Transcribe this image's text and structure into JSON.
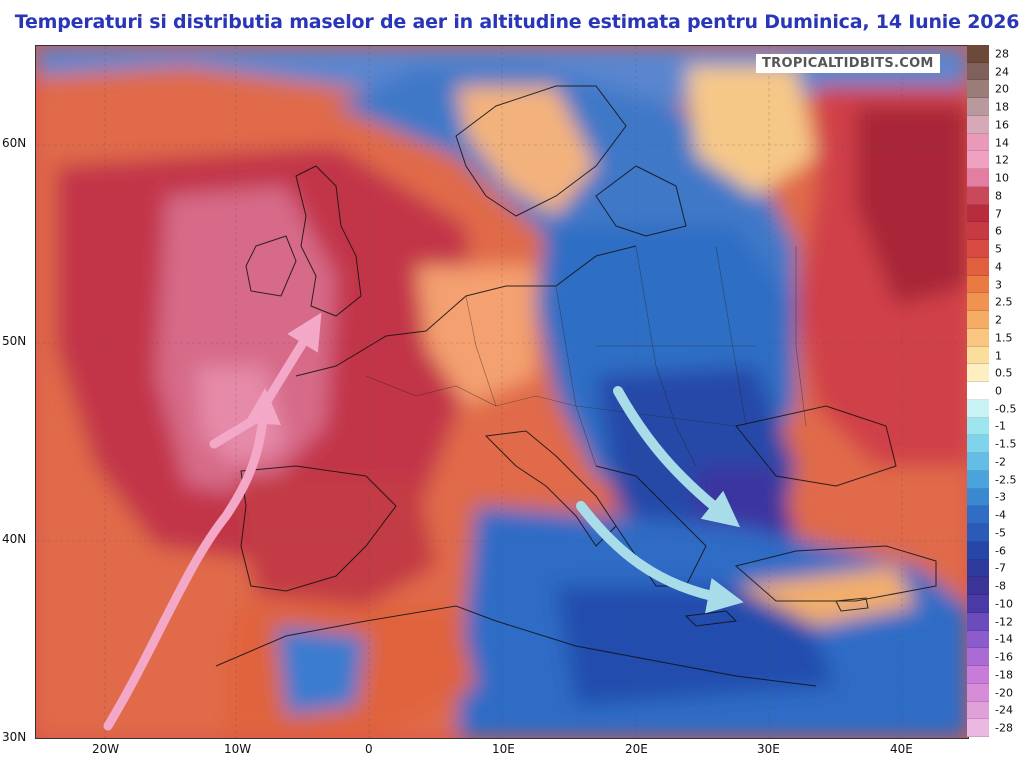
{
  "title": "Temperaturi si distributia maselor de aer in altitudine estimata pentru Duminica, 14 Iunie 2026",
  "watermark": "TROPICALTIDBITS.COM",
  "latitude_labels": [
    "60N",
    "50N",
    "40N",
    "30N"
  ],
  "longitude_labels": [
    "20W",
    "10W",
    "0",
    "10E",
    "20E",
    "30E",
    "40E"
  ],
  "colorbar": {
    "labels": [
      "28",
      "24",
      "20",
      "18",
      "16",
      "14",
      "12",
      "10",
      "8",
      "7",
      "6",
      "5",
      "4",
      "3",
      "2.5",
      "2",
      "1.5",
      "1",
      "0.5",
      "0",
      "-0.5",
      "-1",
      "-1.5",
      "-2",
      "-2.5",
      "-3",
      "-4",
      "-5",
      "-6",
      "-7",
      "-8",
      "-10",
      "-12",
      "-14",
      "-16",
      "-18",
      "-20",
      "-24",
      "-28"
    ],
    "colors": [
      "#6b4a3a",
      "#80605a",
      "#9a7d78",
      "#b89a9e",
      "#d6a8b8",
      "#e89ab8",
      "#f0a0c0",
      "#e27ea2",
      "#c9485a",
      "#b82c3e",
      "#c83a42",
      "#d84a44",
      "#e0603e",
      "#e97b42",
      "#f09350",
      "#f5ad66",
      "#f8c680",
      "#fbdd9c",
      "#fdefc2",
      "#ffffff",
      "#c8f2f4",
      "#9ee6ee",
      "#7fd3ea",
      "#64bde4",
      "#4aa3dc",
      "#3a88d0",
      "#2f6ec4",
      "#2b5ab8",
      "#2646a8",
      "#2d3a9c",
      "#3b3496",
      "#4a3aa6",
      "#6a4cbc",
      "#8c5ccc",
      "#aa6cd4",
      "#c67cd8",
      "#d68cd6",
      "#e0a0da",
      "#eab8e0"
    ]
  },
  "arrows": [
    {
      "name": "warm-air-arrow",
      "color": "#f4a8c8"
    },
    {
      "name": "cold-air-arrow-balkans",
      "color": "#a8dce8"
    },
    {
      "name": "cold-air-arrow-aegean",
      "color": "#a8dce8"
    }
  ]
}
